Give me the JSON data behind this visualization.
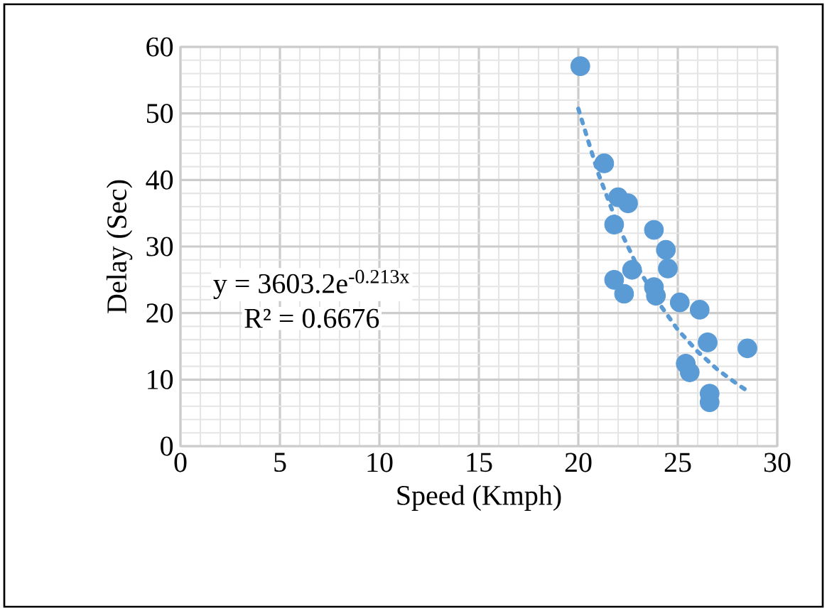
{
  "chart_data": {
    "type": "scatter",
    "xlabel": "Speed (Kmph)",
    "ylabel": "Delay (Sec)",
    "xlim": [
      0,
      30
    ],
    "ylim": [
      0,
      60
    ],
    "xticks": [
      0,
      5,
      10,
      15,
      20,
      25,
      30
    ],
    "yticks": [
      0,
      10,
      20,
      30,
      40,
      50,
      60
    ],
    "grid": true,
    "annotations": [
      "y = 3603.2e$^{-0.213x}$",
      "R² = 0.6676"
    ],
    "series": [
      {
        "color": "#5b9bd5",
        "marker": "circle",
        "x": [
          20.1,
          21.3,
          22.0,
          22.5,
          21.8,
          23.8,
          24.4,
          22.7,
          24.5,
          21.8,
          22.3,
          23.8,
          23.9,
          25.1,
          26.1,
          26.5,
          28.5,
          25.4,
          25.6,
          26.6,
          26.6
        ],
        "values": [
          57.1,
          42.5,
          37.4,
          36.5,
          33.3,
          32.5,
          29.5,
          26.5,
          26.7,
          25.0,
          22.9,
          23.9,
          22.6,
          21.6,
          20.5,
          15.6,
          14.7,
          12.4,
          11.1,
          7.9,
          6.6
        ]
      },
      {
        "type": "line",
        "color": "#5b9bd5",
        "marker": "none",
        "line_style": "dotted",
        "x": [
          20,
          21,
          22,
          23,
          24,
          25,
          26,
          27,
          28,
          28.5
        ],
        "values": [
          50.7,
          41.0,
          33.1,
          26.8,
          21.7,
          17.5,
          14.2,
          11.5,
          9.3,
          8.3
        ]
      }
    ]
  }
}
